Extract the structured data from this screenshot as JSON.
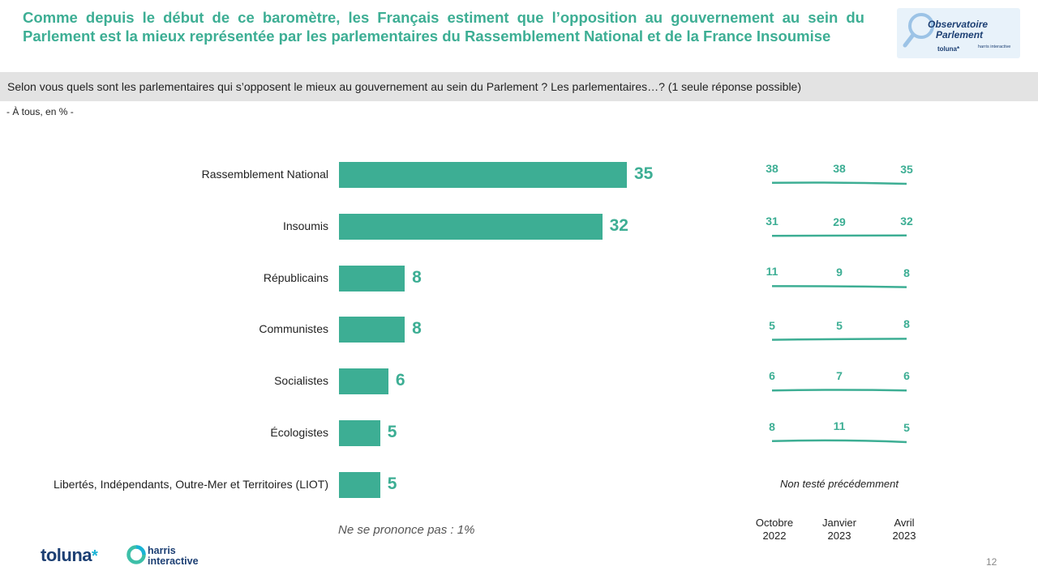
{
  "header": {
    "title": "Comme depuis le début de ce baromètre, les Français estiment que l’opposition au gouvernement au sein du Parlement est la mieux représentée par les parlementaires du Rassemblement National et de la France Insoumise",
    "logo_line1": "Observatoire",
    "logo_line2": "Parlement",
    "logo_toluna": "toluna*",
    "logo_harris": "harris interactive"
  },
  "question": "Selon vous quels sont les parlementaires qui s’opposent le mieux au gouvernement au sein du Parlement ? Les parlementaires…? (1 seule réponse possible)",
  "base": "- À tous, en % -",
  "chart_data": {
    "type": "bar",
    "orientation": "horizontal",
    "title": "Selon vous quels sont les parlementaires qui s’opposent le mieux au gouvernement au sein du Parlement ?",
    "categories": [
      "Rassemblement National",
      "Insoumis",
      "Républicains",
      "Communistes",
      "Socialistes",
      "Écologistes",
      "Libertés, Indépendants, Outre-Mer et Territoires (LIOT)"
    ],
    "values": [
      35,
      32,
      8,
      8,
      6,
      5,
      5
    ],
    "value_labels": [
      "35",
      "32",
      "8",
      "8",
      "6",
      "5",
      "5"
    ],
    "unit": "%",
    "xlim": [
      0,
      45
    ],
    "trend": {
      "periods": [
        "Octobre 2022",
        "Janvier 2023",
        "Avril 2023"
      ],
      "series": [
        {
          "category": "Rassemblement National",
          "values": [
            38,
            38,
            35
          ]
        },
        {
          "category": "Insoumis",
          "values": [
            31,
            29,
            32
          ]
        },
        {
          "category": "Républicains",
          "values": [
            11,
            9,
            8
          ]
        },
        {
          "category": "Communistes",
          "values": [
            5,
            5,
            8
          ]
        },
        {
          "category": "Socialistes",
          "values": [
            6,
            7,
            6
          ]
        },
        {
          "category": "Écologistes",
          "values": [
            8,
            11,
            5
          ]
        }
      ],
      "not_tested_label": "Non testé précédemment"
    },
    "note": "Ne se prononce pas : 1%"
  },
  "periods_display": [
    {
      "line1": "Octobre",
      "line2": "2022"
    },
    {
      "line1": "Janvier",
      "line2": "2023"
    },
    {
      "line1": "Avril",
      "line2": "2023"
    }
  ],
  "footer": {
    "toluna": "toluna",
    "toluna_star": "*",
    "harris_line1": "harris",
    "harris_line2": "interactive",
    "page_number": "12"
  },
  "colors": {
    "accent": "#3dae94",
    "navy": "#1c3f73",
    "band": "#e3e3e3"
  }
}
